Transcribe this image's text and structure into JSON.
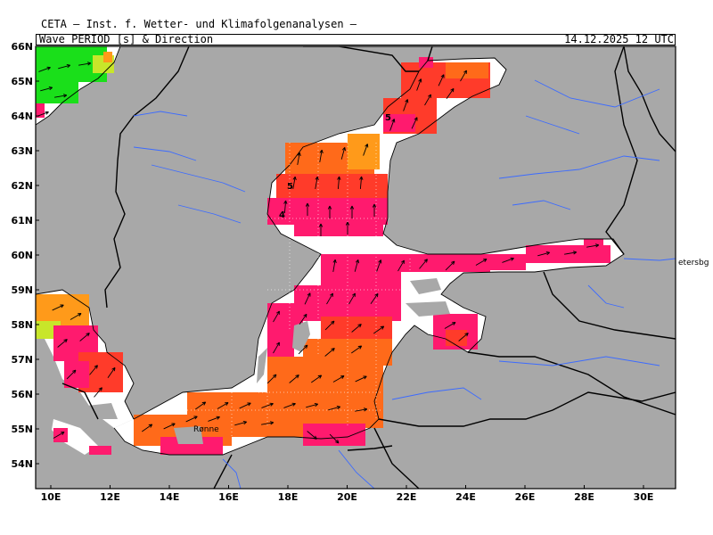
{
  "header": {
    "institute": "CETA — Inst. f. Wetter- und Klimafolgenanalysen —",
    "variable": "Wave PERIOD [s] & Direction",
    "timestamp": "14.12.2025 12 UTC"
  },
  "axes": {
    "lat_labels": [
      "66N",
      "65N",
      "64N",
      "63N",
      "62N",
      "61N",
      "60N",
      "59N",
      "58N",
      "57N",
      "56N",
      "55N",
      "54N"
    ],
    "lon_labels": [
      "10E",
      "12E",
      "14E",
      "16E",
      "18E",
      "20E",
      "22E",
      "24E",
      "26E",
      "28E",
      "30E"
    ]
  },
  "map_text": {
    "city": "Rønne",
    "offmap_label": "etersbg",
    "contour_labels": [
      "5",
      "5",
      "4"
    ]
  },
  "colors": {
    "land": "#a8a8a8",
    "sea": "#ffffff",
    "period_magenta": "#ff1a6e",
    "period_red": "#ff3b2a",
    "period_orange": "#ff6a1a",
    "period_amber": "#ff9a1a",
    "period_yellow": "#c8e62a",
    "period_green": "#1adf1a",
    "rivers": "#3c6bff",
    "borders": "#000000"
  }
}
